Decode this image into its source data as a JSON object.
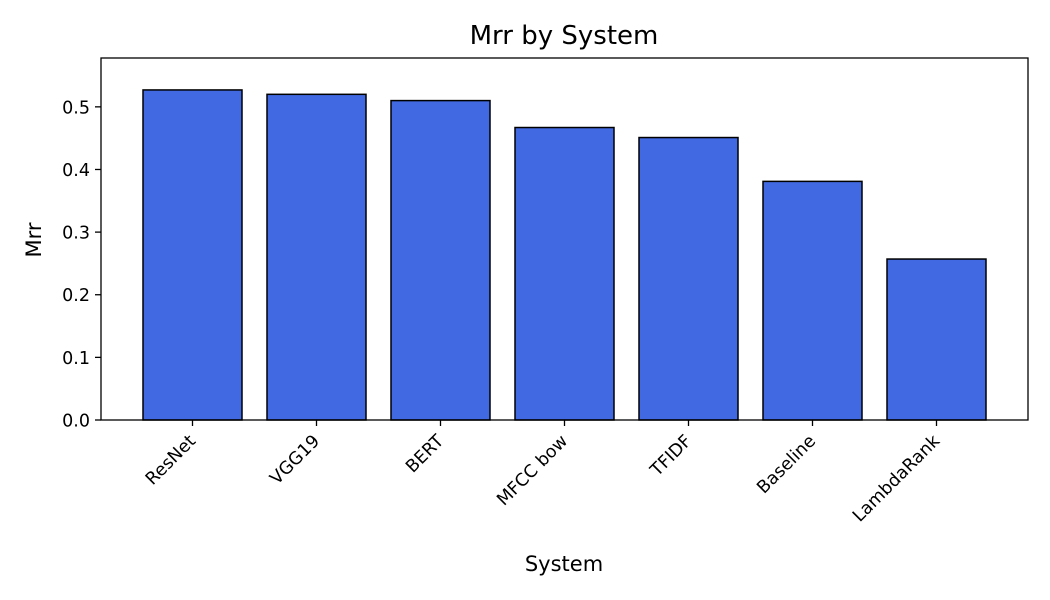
{
  "chart_data": {
    "type": "bar",
    "title": "Mrr by System",
    "xlabel": "System",
    "ylabel": "Mrr",
    "categories": [
      "ResNet",
      "VGG19",
      "BERT",
      "MFCC bow",
      "TFIDF",
      "Baseline",
      "LambdaRank"
    ],
    "values": [
      0.527,
      0.52,
      0.51,
      0.467,
      0.451,
      0.381,
      0.257
    ],
    "ylim": [
      0,
      0.578
    ],
    "yticks": [
      0.0,
      0.1,
      0.2,
      0.3,
      0.4,
      0.5
    ],
    "ytick_labels": [
      "0.0",
      "0.1",
      "0.2",
      "0.3",
      "0.4",
      "0.5"
    ],
    "grid": false,
    "legend": "none",
    "colors": {
      "bar_fill": "#4169e1",
      "bar_edge": "#000000"
    }
  }
}
